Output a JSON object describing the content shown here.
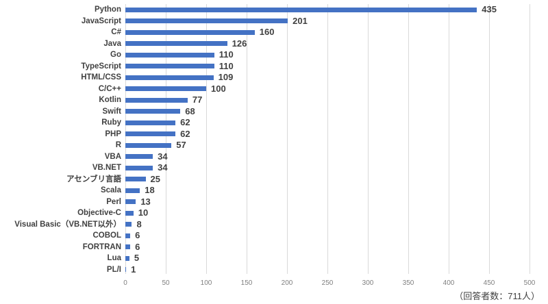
{
  "chart_data": {
    "type": "bar",
    "orientation": "horizontal",
    "title": "",
    "xlabel": "",
    "ylabel": "",
    "categories": [
      "Python",
      "JavaScript",
      "C#",
      "Java",
      "Go",
      "TypeScript",
      "HTML/CSS",
      "C/C++",
      "Kotlin",
      "Swift",
      "Ruby",
      "PHP",
      "R",
      "VBA",
      "VB.NET",
      "アセンブリ言語",
      "Scala",
      "Perl",
      "Objective-C",
      "Visual Basic（VB.NET以外）",
      "COBOL",
      "FORTRAN",
      "Lua",
      "PL/I"
    ],
    "values": [
      435,
      201,
      160,
      126,
      110,
      110,
      109,
      100,
      77,
      68,
      62,
      62,
      57,
      34,
      34,
      25,
      18,
      13,
      10,
      8,
      6,
      6,
      5,
      1
    ],
    "xlim": [
      0,
      500
    ],
    "xticks": [
      0,
      50,
      100,
      150,
      200,
      250,
      300,
      350,
      400,
      450,
      500
    ],
    "grid": true,
    "legend": false,
    "bar_color": "#4472C4",
    "value_label_color": "#404040",
    "category_label_color": "#404040",
    "tick_label_color": "#7f7f7f",
    "gridline_color": "#d9d9d9"
  },
  "footnote": "（回答者数：711人）"
}
